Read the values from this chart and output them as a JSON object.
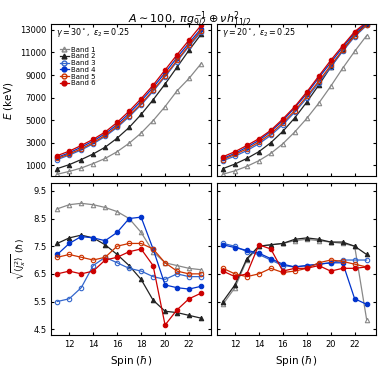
{
  "title": "$A \\sim 100,\\; \\pi g_{9/2}^{-1} \\oplus \\nu h_{11/2}^{2}$",
  "left_label": "$\\gamma = 30^\\circ,\\; \\varepsilon_2 = 0.25$",
  "right_label": "$\\gamma = 20^\\circ,\\; \\varepsilon_2 = 0.25$",
  "xlabel": "Spin ($\\hbar$)",
  "ylabel_top": "$E$ (keV)",
  "ylabel_bottom": "$\\sqrt{\\langle j_x^2 \\rangle}\\;(\\hbar)$",
  "top_left": {
    "band1": {
      "x": [
        11,
        12,
        13,
        14,
        15,
        16,
        17,
        18,
        19,
        20,
        21,
        22,
        23
      ],
      "y": [
        200,
        450,
        750,
        1150,
        1600,
        2200,
        2950,
        3850,
        4950,
        6200,
        7600,
        8700,
        10000
      ]
    },
    "band2": {
      "x": [
        11,
        12,
        13,
        14,
        15,
        16,
        17,
        18,
        19,
        20,
        21,
        22,
        23
      ],
      "y": [
        700,
        1050,
        1500,
        2000,
        2600,
        3400,
        4350,
        5500,
        6800,
        8200,
        9700,
        11200,
        12600
      ]
    },
    "band3": {
      "x": [
        11,
        12,
        13,
        14,
        15,
        16,
        17,
        18,
        19,
        20,
        21,
        22,
        23
      ],
      "y": [
        1500,
        1900,
        2350,
        2900,
        3550,
        4350,
        5300,
        6350,
        7550,
        8850,
        10200,
        11550,
        12800
      ]
    },
    "band4": {
      "x": [
        11,
        12,
        13,
        14,
        15,
        16,
        17,
        18,
        19,
        20,
        21,
        22,
        23
      ],
      "y": [
        1700,
        2100,
        2600,
        3150,
        3800,
        4600,
        5600,
        6700,
        7900,
        9200,
        10550,
        11850,
        13100
      ]
    },
    "band5": {
      "x": [
        11,
        12,
        13,
        14,
        15,
        16,
        17,
        18,
        19,
        20,
        21,
        22,
        23
      ],
      "y": [
        1600,
        2000,
        2450,
        3000,
        3650,
        4450,
        5400,
        6450,
        7650,
        8950,
        10300,
        11650,
        12950
      ]
    },
    "band6": {
      "x": [
        11,
        12,
        13,
        14,
        15,
        16,
        17,
        18,
        19,
        20,
        21,
        22,
        23
      ],
      "y": [
        1850,
        2250,
        2750,
        3300,
        3950,
        4800,
        5800,
        6900,
        8100,
        9450,
        10800,
        12100,
        13400
      ]
    }
  },
  "top_right": {
    "band1": {
      "x": [
        11,
        12,
        13,
        14,
        15,
        16,
        17,
        18,
        19,
        20,
        21,
        22,
        23
      ],
      "y": [
        200,
        500,
        900,
        1400,
        2050,
        2900,
        3950,
        5150,
        6500,
        8000,
        9600,
        11100,
        12500
      ]
    },
    "band2": {
      "x": [
        11,
        12,
        13,
        14,
        15,
        16,
        17,
        18,
        19,
        20,
        21,
        22,
        23
      ],
      "y": [
        700,
        1100,
        1600,
        2200,
        3000,
        4000,
        5200,
        6600,
        8100,
        9700,
        11200,
        12600,
        13500
      ]
    },
    "band3": {
      "x": [
        11,
        12,
        13,
        14,
        15,
        16,
        17,
        18,
        19,
        20,
        21,
        22,
        23
      ],
      "y": [
        1400,
        1800,
        2300,
        2900,
        3650,
        4600,
        5700,
        6950,
        8300,
        9700,
        11100,
        12400,
        13400
      ]
    },
    "band4": {
      "x": [
        11,
        12,
        13,
        14,
        15,
        16,
        17,
        18,
        19,
        20,
        21,
        22,
        23
      ],
      "y": [
        1600,
        2050,
        2600,
        3200,
        4000,
        4950,
        6100,
        7350,
        8750,
        10100,
        11450,
        12750,
        13600
      ]
    },
    "band5": {
      "x": [
        11,
        12,
        13,
        14,
        15,
        16,
        17,
        18,
        19,
        20,
        21,
        22,
        23
      ],
      "y": [
        1500,
        1950,
        2450,
        3050,
        3800,
        4750,
        5850,
        7100,
        8450,
        9850,
        11200,
        12500,
        13450
      ]
    },
    "band6": {
      "x": [
        11,
        12,
        13,
        14,
        15,
        16,
        17,
        18,
        19,
        20,
        21,
        22,
        23
      ],
      "y": [
        1750,
        2200,
        2750,
        3350,
        4100,
        5100,
        6200,
        7500,
        8900,
        10300,
        11600,
        12850,
        13700
      ]
    }
  },
  "bot_left": {
    "band1": {
      "x": [
        11,
        12,
        13,
        14,
        15,
        16,
        17,
        18,
        19,
        20,
        21,
        22,
        23
      ],
      "y": [
        8.85,
        9.0,
        9.05,
        9.0,
        8.9,
        8.75,
        8.5,
        8.0,
        7.3,
        6.9,
        6.8,
        6.7,
        6.65
      ]
    },
    "band2": {
      "x": [
        11,
        12,
        13,
        14,
        15,
        16,
        17,
        18,
        19,
        20,
        21,
        22,
        23
      ],
      "y": [
        7.6,
        7.8,
        7.9,
        7.8,
        7.55,
        7.2,
        6.8,
        6.3,
        5.55,
        5.15,
        5.1,
        5.0,
        4.9
      ]
    },
    "band3": {
      "x": [
        11,
        12,
        13,
        14,
        15,
        16,
        17,
        18,
        19,
        20,
        21,
        22,
        23
      ],
      "y": [
        5.5,
        5.6,
        6.0,
        6.8,
        7.1,
        6.9,
        6.7,
        6.6,
        6.4,
        6.3,
        6.5,
        6.4,
        6.4
      ]
    },
    "band4": {
      "x": [
        11,
        12,
        13,
        14,
        15,
        16,
        17,
        18,
        19,
        20,
        21,
        22,
        23
      ],
      "y": [
        7.2,
        7.6,
        7.85,
        7.8,
        7.7,
        8.0,
        8.5,
        8.55,
        7.4,
        6.1,
        6.0,
        5.95,
        6.05
      ]
    },
    "band5": {
      "x": [
        11,
        12,
        13,
        14,
        15,
        16,
        17,
        18,
        19,
        20,
        21,
        22,
        23
      ],
      "y": [
        7.1,
        7.2,
        7.1,
        7.0,
        7.1,
        7.5,
        7.6,
        7.6,
        7.4,
        6.9,
        6.6,
        6.5,
        6.5
      ]
    },
    "band6": {
      "x": [
        11,
        12,
        13,
        14,
        15,
        16,
        17,
        18,
        19,
        20,
        21,
        22,
        23
      ],
      "y": [
        6.5,
        6.6,
        6.5,
        6.6,
        7.0,
        7.1,
        7.3,
        7.4,
        6.8,
        4.65,
        5.2,
        5.6,
        5.8
      ]
    }
  },
  "bot_right": {
    "band1": {
      "x": [
        11,
        12,
        13,
        14,
        15,
        16,
        17,
        18,
        19,
        20,
        21,
        22,
        23
      ],
      "y": [
        5.4,
        6.0,
        7.0,
        7.5,
        7.55,
        7.6,
        7.7,
        7.75,
        7.7,
        7.65,
        7.6,
        7.5,
        4.85
      ]
    },
    "band2": {
      "x": [
        11,
        12,
        13,
        14,
        15,
        16,
        17,
        18,
        19,
        20,
        21,
        22,
        23
      ],
      "y": [
        5.5,
        6.1,
        7.05,
        7.5,
        7.55,
        7.6,
        7.75,
        7.8,
        7.75,
        7.65,
        7.65,
        7.5,
        7.2
      ]
    },
    "band3": {
      "x": [
        11,
        12,
        13,
        14,
        15,
        16,
        17,
        18,
        19,
        20,
        21,
        22,
        23
      ],
      "y": [
        7.6,
        7.5,
        7.3,
        7.2,
        7.0,
        6.8,
        6.75,
        6.8,
        6.85,
        6.9,
        7.0,
        7.0,
        7.0
      ]
    },
    "band4": {
      "x": [
        11,
        12,
        13,
        14,
        15,
        16,
        17,
        18,
        19,
        20,
        21,
        22,
        23
      ],
      "y": [
        7.55,
        7.45,
        7.35,
        7.25,
        7.05,
        6.85,
        6.75,
        6.8,
        6.85,
        6.9,
        6.9,
        5.6,
        5.4
      ]
    },
    "band5": {
      "x": [
        11,
        12,
        13,
        14,
        15,
        16,
        17,
        18,
        19,
        20,
        21,
        22,
        23
      ],
      "y": [
        6.7,
        6.5,
        6.4,
        6.5,
        6.7,
        6.55,
        6.6,
        6.7,
        6.9,
        7.0,
        6.95,
        6.85,
        6.75
      ]
    },
    "band6": {
      "x": [
        11,
        12,
        13,
        14,
        15,
        16,
        17,
        18,
        19,
        20,
        21,
        22,
        23
      ],
      "y": [
        6.6,
        6.4,
        6.5,
        7.55,
        7.4,
        6.6,
        6.7,
        6.7,
        6.8,
        6.6,
        6.7,
        6.7,
        6.75
      ]
    }
  },
  "colors": {
    "band1": "#888888",
    "band2": "#222222",
    "band3": "#3366cc",
    "band4": "#0033cc",
    "band5": "#cc3300",
    "band6": "#cc0000"
  },
  "markers": {
    "band1": "^",
    "band2": "^",
    "band3": "o",
    "band4": "o",
    "band5": "o",
    "band6": "o"
  },
  "filled": {
    "band1": false,
    "band2": true,
    "band3": false,
    "band4": true,
    "band5": false,
    "band6": true
  }
}
